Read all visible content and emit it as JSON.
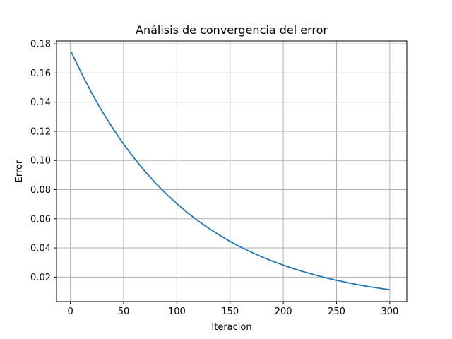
{
  "chart_data": {
    "type": "line",
    "title": "Análisis de convergencia del error",
    "xlabel": "Iteracion",
    "ylabel": "Error",
    "xlim": [
      -13,
      316
    ],
    "ylim": [
      0.0032,
      0.182
    ],
    "grid": true,
    "legend": "none",
    "xticks": [
      0,
      50,
      100,
      150,
      200,
      250,
      300
    ],
    "xtick_labels": [
      "0",
      "50",
      "100",
      "150",
      "200",
      "250",
      "300"
    ],
    "yticks": [
      0.02,
      0.04,
      0.06,
      0.08,
      0.1,
      0.12,
      0.14,
      0.16,
      0.18
    ],
    "ytick_labels": [
      "0.02",
      "0.04",
      "0.06",
      "0.08",
      "0.10",
      "0.12",
      "0.14",
      "0.16",
      "0.18"
    ],
    "series": [
      {
        "color": "#1f77b4",
        "x": [
          1,
          10,
          20,
          30,
          40,
          50,
          60,
          70,
          80,
          90,
          100,
          110,
          120,
          130,
          140,
          150,
          160,
          170,
          180,
          190,
          200,
          210,
          220,
          230,
          240,
          250,
          260,
          270,
          280,
          290,
          300
        ],
        "y": [
          0.1742,
          0.1605,
          0.1463,
          0.1336,
          0.1219,
          0.1112,
          0.1015,
          0.0926,
          0.0845,
          0.0771,
          0.0704,
          0.0642,
          0.0586,
          0.0535,
          0.0488,
          0.0445,
          0.0406,
          0.0371,
          0.0338,
          0.0309,
          0.0282,
          0.0257,
          0.0235,
          0.0214,
          0.0195,
          0.0178,
          0.0163,
          0.0148,
          0.0135,
          0.0124,
          0.0113
        ]
      }
    ]
  }
}
